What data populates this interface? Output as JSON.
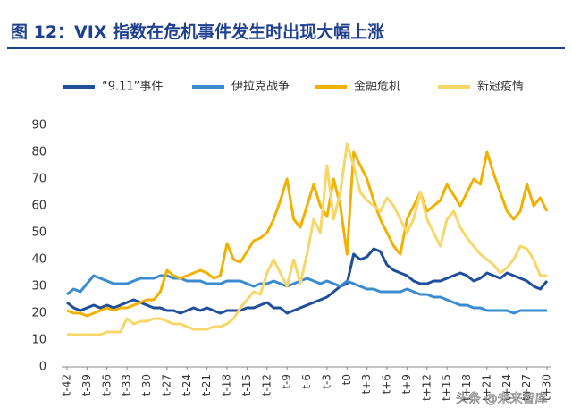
{
  "chart_data": {
    "type": "line",
    "title": "图 12：VIX 指数在危机事件发生时出现大幅上涨",
    "watermark": "头条 @未来智库",
    "categories": [
      "t-42",
      null,
      null,
      "t-39",
      null,
      null,
      "t-36",
      null,
      null,
      "t-33",
      null,
      null,
      "t-30",
      null,
      null,
      "t-27",
      null,
      null,
      "t-24",
      null,
      null,
      "t-21",
      null,
      null,
      "t-18",
      null,
      null,
      "t-15",
      null,
      null,
      "t-12",
      null,
      null,
      "t-9",
      null,
      null,
      "t-6",
      null,
      null,
      "t-3",
      null,
      null,
      "t0",
      null,
      null,
      "t+3",
      null,
      null,
      "t+6",
      null,
      null,
      "t+9",
      null,
      null,
      "t+12",
      null,
      null,
      "t+15",
      null,
      null,
      "t+18",
      null,
      null,
      "t+21",
      null,
      null,
      "t+24",
      null,
      null,
      "t+27",
      null,
      null,
      "t+30"
    ],
    "series": [
      {
        "name": "“9.11”事件",
        "color": "#1f4e9a",
        "values": [
          24,
          22,
          21,
          22,
          23,
          22,
          23,
          22,
          23,
          24,
          25,
          24,
          23,
          22,
          22,
          21,
          21,
          20,
          21,
          22,
          21,
          22,
          21,
          20,
          21,
          21,
          21,
          22,
          22,
          23,
          24,
          22,
          22,
          20,
          21,
          22,
          23,
          24,
          25,
          26,
          28,
          30,
          31,
          42,
          40,
          41,
          44,
          43,
          38,
          36,
          35,
          34,
          32,
          31,
          31,
          32,
          32,
          33,
          34,
          35,
          34,
          32,
          33,
          35,
          34,
          33,
          35,
          34,
          33,
          32,
          30,
          29,
          32
        ]
      },
      {
        "name": "伊拉克战争",
        "color": "#3b8bd0",
        "values": [
          27,
          29,
          28,
          31,
          34,
          33,
          32,
          31,
          31,
          31,
          32,
          33,
          33,
          33,
          34,
          34,
          33,
          33,
          32,
          32,
          32,
          31,
          31,
          31,
          32,
          32,
          32,
          31,
          30,
          31,
          31,
          32,
          31,
          30,
          31,
          32,
          33,
          32,
          31,
          32,
          31,
          30,
          32,
          31,
          30,
          29,
          29,
          28,
          28,
          28,
          28,
          29,
          28,
          27,
          27,
          26,
          26,
          25,
          24,
          23,
          23,
          22,
          22,
          21,
          21,
          21,
          21,
          20,
          21,
          21,
          21,
          21,
          21
        ]
      },
      {
        "name": "金融危机",
        "color": "#f2b100",
        "values": [
          21,
          20,
          20,
          19,
          20,
          21,
          22,
          21,
          22,
          22,
          23,
          24,
          25,
          25,
          28,
          36,
          34,
          33,
          34,
          35,
          36,
          35,
          33,
          34,
          46,
          40,
          39,
          43,
          47,
          48,
          50,
          55,
          62,
          70,
          55,
          52,
          60,
          68,
          60,
          56,
          70,
          60,
          42,
          80,
          75,
          70,
          62,
          55,
          50,
          45,
          42,
          55,
          60,
          65,
          58,
          60,
          62,
          68,
          64,
          60,
          65,
          70,
          68,
          80,
          72,
          65,
          58,
          55,
          58,
          68,
          60,
          63,
          58
        ]
      },
      {
        "name": "新冠疫情",
        "color": "#f7d66a",
        "values": [
          12,
          12,
          12,
          12,
          12,
          12,
          13,
          13,
          13,
          18,
          16,
          17,
          17,
          18,
          18,
          17,
          16,
          16,
          15,
          14,
          14,
          14,
          15,
          15,
          16,
          18,
          22,
          25,
          28,
          27,
          35,
          40,
          35,
          30,
          40,
          31,
          42,
          55,
          50,
          75,
          55,
          65,
          83,
          75,
          65,
          62,
          60,
          58,
          63,
          60,
          55,
          50,
          55,
          65,
          55,
          50,
          45,
          55,
          58,
          52,
          48,
          45,
          42,
          40,
          38,
          35,
          37,
          40,
          45,
          44,
          40,
          34,
          34
        ]
      }
    ],
    "ylim": [
      0,
      90
    ],
    "yticks": [
      0,
      10,
      20,
      30,
      40,
      50,
      60,
      70,
      80,
      90
    ],
    "grid": false,
    "legend": "top"
  }
}
